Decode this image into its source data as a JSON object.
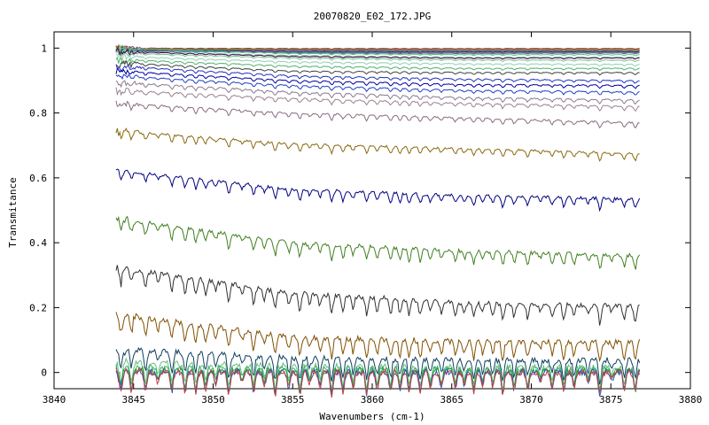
{
  "chart_data": {
    "type": "line",
    "title": "20070820_E02_172.JPG",
    "xlabel": "Wavenumbers (cm-1)",
    "ylabel": "Transmitance",
    "xlim": [
      3840,
      3880
    ],
    "ylim": [
      -0.05,
      1.05
    ],
    "xticks": [
      3840,
      3845,
      3850,
      3855,
      3860,
      3865,
      3870,
      3875,
      3880
    ],
    "yticks": [
      0,
      0.2,
      0.4,
      0.6,
      0.8,
      1
    ],
    "ytick_labels": [
      "0",
      "0.2",
      "0.4",
      "0.6",
      "0.8",
      "1"
    ],
    "grid": false,
    "legend": "none",
    "x_start": 3843.9,
    "x_end": 3876.8,
    "series": [
      {
        "color": "#5a4a8a",
        "values": [
          1.0,
          0.999,
          0.999,
          0.999
        ]
      },
      {
        "color": "#b03030",
        "values": [
          1.0,
          0.998,
          0.998,
          0.998
        ]
      },
      {
        "color": "#40a040",
        "values": [
          0.998,
          0.996,
          0.995,
          0.996
        ]
      },
      {
        "color": "#d08000",
        "values": [
          0.997,
          0.995,
          0.994,
          0.995
        ]
      },
      {
        "color": "#3060c0",
        "values": [
          0.996,
          0.993,
          0.992,
          0.992
        ]
      },
      {
        "color": "#303030",
        "values": [
          0.995,
          0.99,
          0.989,
          0.99
        ]
      },
      {
        "color": "#c040c0",
        "values": [
          0.993,
          0.988,
          0.986,
          0.987
        ]
      },
      {
        "color": "#209090",
        "values": [
          0.992,
          0.986,
          0.984,
          0.985
        ]
      },
      {
        "color": "#60c080",
        "values": [
          1.0,
          0.984,
          0.98,
          0.98
        ]
      },
      {
        "color": "#80d0a0",
        "values": [
          0.99,
          0.978,
          0.972,
          0.972
        ]
      },
      {
        "color": "#70c090",
        "values": [
          0.985,
          0.97,
          0.964,
          0.963
        ]
      },
      {
        "color": "#500050",
        "values": [
          0.99,
          0.975,
          0.97,
          0.97
        ]
      },
      {
        "color": "#90d0b0",
        "values": [
          0.975,
          0.958,
          0.952,
          0.95
        ]
      },
      {
        "color": "#50b070",
        "values": [
          0.965,
          0.945,
          0.938,
          0.938
        ]
      },
      {
        "color": "#404040",
        "values": [
          0.955,
          0.93,
          0.925,
          0.925
        ]
      },
      {
        "color": "#2030c0",
        "values": [
          0.945,
          0.915,
          0.905,
          0.9
        ]
      },
      {
        "color": "#0000a0",
        "values": [
          0.93,
          0.9,
          0.888,
          0.885
        ]
      },
      {
        "color": "#2040c0",
        "values": [
          0.915,
          0.885,
          0.87,
          0.865
        ]
      },
      {
        "color": "#8a7a90",
        "values": [
          0.895,
          0.865,
          0.848,
          0.84
        ]
      },
      {
        "color": "#9a8090",
        "values": [
          0.87,
          0.845,
          0.83,
          0.82
        ]
      },
      {
        "color": "#8a6a80",
        "values": [
          0.83,
          0.8,
          0.785,
          0.77
        ]
      },
      {
        "color": "#8a6a10",
        "values": [
          0.745,
          0.705,
          0.69,
          0.675
        ]
      },
      {
        "color": "#000080",
        "values": [
          0.625,
          0.565,
          0.545,
          0.535
        ]
      },
      {
        "color": "#408020",
        "values": [
          0.475,
          0.4,
          0.375,
          0.36
        ]
      },
      {
        "color": "#303030",
        "values": [
          0.325,
          0.245,
          0.215,
          0.205
        ]
      },
      {
        "color": "#805000",
        "values": [
          0.18,
          0.11,
          0.095,
          0.095
        ]
      },
      {
        "color": "#104060",
        "values": [
          0.07,
          0.045,
          0.038,
          0.038
        ]
      },
      {
        "color": "#60c080",
        "values": [
          0.03,
          0.02,
          0.015,
          0.015
        ]
      },
      {
        "color": "#40b060",
        "values": [
          0.015,
          0.012,
          0.01,
          0.01
        ]
      },
      {
        "color": "#20a040",
        "values": [
          0.008,
          0.006,
          0.005,
          0.005
        ]
      },
      {
        "color": "#3050c0",
        "values": [
          0.002,
          0.001,
          0.001,
          0.001
        ]
      },
      {
        "color": "#c04040",
        "values": [
          0.0,
          0.0,
          0.0,
          0.0
        ]
      }
    ]
  }
}
